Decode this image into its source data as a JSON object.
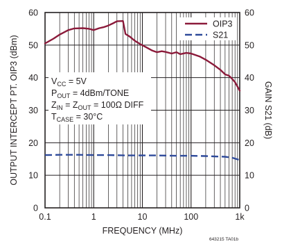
{
  "chart_data": {
    "type": "line",
    "xlabel": "FREQUENCY (MHz)",
    "ylabel_left": "OUTPUT INTERCEPT PT. OIP3 (dBm)",
    "ylabel_right": "GAIN S21 (dB)",
    "x_scale": "log",
    "xlim": [
      0.1,
      1000
    ],
    "ylim_left": [
      0,
      60
    ],
    "ylim_right": [
      0,
      60
    ],
    "grid": true,
    "legend_position": "top-right",
    "x_ticks": [
      {
        "value": 0.1,
        "label": "0.1"
      },
      {
        "value": 1,
        "label": "1"
      },
      {
        "value": 10,
        "label": "10"
      },
      {
        "value": 100,
        "label": "100"
      },
      {
        "value": 1000,
        "label": "1k"
      }
    ],
    "y_ticks_left": [
      "0",
      "10",
      "20",
      "30",
      "40",
      "50",
      "60"
    ],
    "y_ticks_right": [
      "0",
      "10",
      "20",
      "30",
      "40",
      "50",
      "60"
    ],
    "series": [
      {
        "name": "OIP3",
        "color": "#8b1a3a",
        "style": "solid",
        "axis": "left",
        "x": [
          0.1,
          0.15,
          0.2,
          0.3,
          0.4,
          0.6,
          0.8,
          1.0,
          1.3,
          1.6,
          2.0,
          2.5,
          3.0,
          4.0,
          4.5,
          5.5,
          7,
          9,
          12,
          16,
          20,
          25,
          30,
          40,
          50,
          60,
          80,
          100,
          150,
          200,
          300,
          400,
          500,
          600,
          700,
          800,
          1000
        ],
        "y": [
          50.5,
          52,
          53.2,
          54.6,
          55.1,
          55.2,
          55.0,
          54.6,
          55.2,
          55.5,
          56.0,
          56.7,
          57.3,
          57.4,
          53.4,
          52.6,
          51.3,
          50.3,
          49.3,
          48.3,
          47.8,
          48.1,
          47.9,
          47.4,
          47.8,
          47.2,
          47.6,
          47.4,
          46.5,
          45.5,
          43.8,
          42.4,
          41.0,
          40.6,
          39.6,
          38.6,
          36.0
        ]
      },
      {
        "name": "S21",
        "color": "#2e4a9a",
        "style": "dashed",
        "axis": "right",
        "x": [
          0.1,
          0.2,
          0.5,
          1,
          2,
          5,
          10,
          20,
          50,
          100,
          200,
          300,
          500,
          700,
          1000
        ],
        "y": [
          16.2,
          16.3,
          16.3,
          16.2,
          16.2,
          16.1,
          16.1,
          16.1,
          16.0,
          16.0,
          15.9,
          15.8,
          15.7,
          15.4,
          14.7
        ]
      }
    ],
    "annotations": [
      {
        "main": "V",
        "sub": "CC",
        "rest": " = 5V"
      },
      {
        "main": "P",
        "sub": "OUT",
        "rest": " = 4dBm/TONE"
      },
      {
        "main": "Z",
        "sub": "IN",
        "mid": " = Z",
        "sub2": "OUT",
        "rest": " = 100Ω DIFF"
      },
      {
        "main": "T",
        "sub": "CASE",
        "rest": " = 30°C"
      }
    ],
    "figure_code": "643215 TA01b"
  }
}
